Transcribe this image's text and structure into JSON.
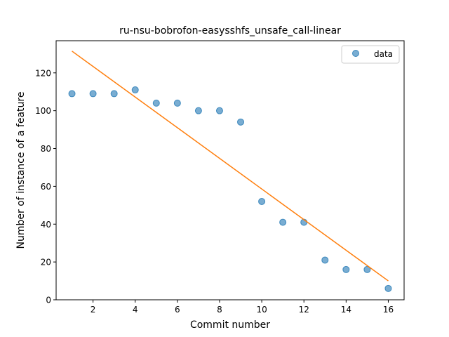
{
  "chart_data": {
    "type": "scatter",
    "title": "ru-nsu-bobrofon-easysshfs_unsafe_call-linear",
    "xlabel": "Commit number",
    "ylabel": "Number of instance of a feature",
    "xlim": [
      0.25,
      16.75
    ],
    "ylim": [
      0,
      137
    ],
    "xticks": [
      2,
      4,
      6,
      8,
      10,
      12,
      14,
      16
    ],
    "yticks": [
      0,
      20,
      40,
      60,
      80,
      100,
      120
    ],
    "legend_placement": "top-right",
    "series": [
      {
        "name": "data",
        "kind": "scatter",
        "color": "#1f77b4",
        "x": [
          1,
          2,
          3,
          4,
          5,
          6,
          7,
          8,
          9,
          10,
          11,
          12,
          13,
          14,
          15,
          16
        ],
        "y": [
          109,
          109,
          109,
          111,
          104,
          104,
          100,
          100,
          94,
          52,
          41,
          41,
          21,
          16,
          16,
          6
        ]
      },
      {
        "kind": "line",
        "color": "#ff7f0e",
        "x": [
          1,
          16
        ],
        "y": [
          131.5,
          10
        ]
      }
    ],
    "grid": false
  }
}
